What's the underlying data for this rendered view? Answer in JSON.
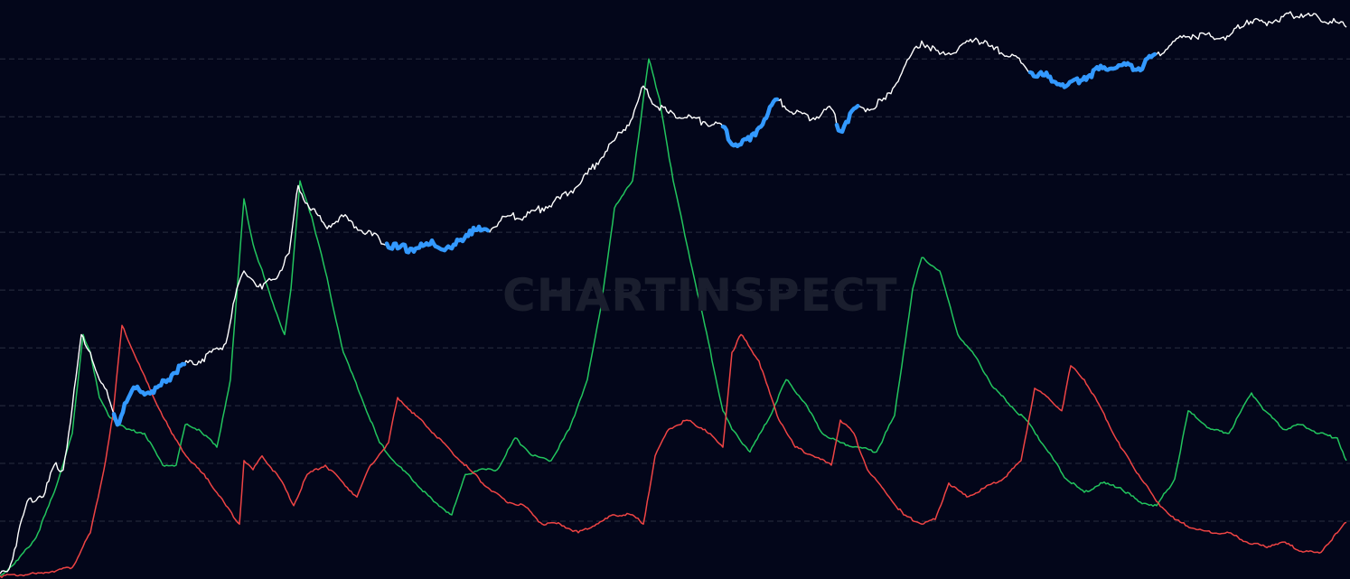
{
  "watermark": "CHARTINSPECT",
  "chart_data": {
    "type": "line",
    "title": "",
    "xlabel": "",
    "ylabel": "",
    "xlim": [
      0,
      149.4
    ],
    "ylim": [
      0,
      10.02
    ],
    "grid": true,
    "grid_levels": [
      1,
      2,
      3,
      4,
      5,
      6,
      7,
      8,
      9
    ],
    "legend": "none",
    "colors": {
      "background": "#03061a",
      "grid": "#2a2f40",
      "price": "#ffffff",
      "highlight": "#3399ff",
      "green": "#22c55e",
      "red": "#ef4444"
    },
    "series": [
      {
        "key": "price",
        "color": "#ffffff",
        "points": [
          [
            0,
            0.09
          ],
          [
            1,
            0.17
          ],
          [
            3,
            1.34
          ],
          [
            5,
            1.5
          ],
          [
            6,
            1.97
          ],
          [
            7,
            1.89
          ],
          [
            8,
            2.98
          ],
          [
            9,
            4.23
          ],
          [
            10,
            3.92
          ],
          [
            11,
            3.45
          ],
          [
            12,
            3.14
          ],
          [
            13,
            2.67
          ],
          [
            14,
            3.06
          ],
          [
            15,
            3.3
          ],
          [
            17,
            3.22
          ],
          [
            19,
            3.53
          ],
          [
            20,
            3.69
          ],
          [
            22,
            3.77
          ],
          [
            25,
            4.08
          ],
          [
            26,
            4.86
          ],
          [
            27,
            5.33
          ],
          [
            28,
            5.17
          ],
          [
            29,
            5.02
          ],
          [
            30,
            5.17
          ],
          [
            31,
            5.33
          ],
          [
            32,
            5.64
          ],
          [
            33,
            6.81
          ],
          [
            34,
            6.5
          ],
          [
            36,
            6.11
          ],
          [
            38,
            6.27
          ],
          [
            40,
            6.03
          ],
          [
            42,
            5.88
          ],
          [
            44,
            5.72
          ],
          [
            46,
            5.72
          ],
          [
            48,
            5.8
          ],
          [
            50,
            5.72
          ],
          [
            52,
            6.03
          ],
          [
            54,
            6.03
          ],
          [
            56,
            6.27
          ],
          [
            58,
            6.27
          ],
          [
            60,
            6.42
          ],
          [
            62,
            6.58
          ],
          [
            64,
            6.81
          ],
          [
            66,
            7.2
          ],
          [
            68,
            7.59
          ],
          [
            70,
            7.98
          ],
          [
            71.2,
            8.53
          ],
          [
            72,
            8.3
          ],
          [
            74,
            8.06
          ],
          [
            76,
            7.98
          ],
          [
            78,
            7.91
          ],
          [
            80,
            7.83
          ],
          [
            81,
            7.52
          ],
          [
            83,
            7.59
          ],
          [
            85,
            8.06
          ],
          [
            86,
            8.3
          ],
          [
            88,
            8.06
          ],
          [
            90,
            7.98
          ],
          [
            92,
            8.14
          ],
          [
            93,
            7.75
          ],
          [
            94.5,
            8.14
          ],
          [
            96,
            8.14
          ],
          [
            98,
            8.3
          ],
          [
            100,
            8.84
          ],
          [
            102,
            9.31
          ],
          [
            104,
            9.08
          ],
          [
            106,
            9.16
          ],
          [
            108,
            9.36
          ],
          [
            110,
            9.16
          ],
          [
            112,
            9.08
          ],
          [
            114,
            8.77
          ],
          [
            116,
            8.69
          ],
          [
            118,
            8.53
          ],
          [
            120,
            8.69
          ],
          [
            122,
            8.84
          ],
          [
            124,
            8.89
          ],
          [
            126,
            8.84
          ],
          [
            128,
            9.08
          ],
          [
            130,
            9.31
          ],
          [
            132,
            9.42
          ],
          [
            134,
            9.39
          ],
          [
            136,
            9.39
          ],
          [
            138,
            9.67
          ],
          [
            140,
            9.63
          ],
          [
            142,
            9.73
          ],
          [
            144,
            9.78
          ],
          [
            146,
            9.7
          ],
          [
            148,
            9.63
          ],
          [
            149,
            9.55
          ]
        ]
      },
      {
        "key": "green",
        "color": "#22c55e",
        "points": [
          [
            0,
            0.05
          ],
          [
            2,
            0.33
          ],
          [
            4,
            0.72
          ],
          [
            6,
            1.5
          ],
          [
            8,
            2.52
          ],
          [
            9.2,
            4.23
          ],
          [
            10,
            3.92
          ],
          [
            11,
            3.14
          ],
          [
            12,
            2.83
          ],
          [
            14,
            2.59
          ],
          [
            16,
            2.52
          ],
          [
            18,
            1.97
          ],
          [
            19.5,
            1.97
          ],
          [
            20.5,
            2.67
          ],
          [
            22,
            2.59
          ],
          [
            24,
            2.28
          ],
          [
            25.5,
            3.45
          ],
          [
            27,
            6.58
          ],
          [
            28,
            5.8
          ],
          [
            30,
            4.86
          ],
          [
            31.5,
            4.23
          ],
          [
            32.2,
            5.02
          ],
          [
            33.2,
            6.89
          ],
          [
            34.5,
            6.27
          ],
          [
            36,
            5.33
          ],
          [
            38,
            3.92
          ],
          [
            40,
            3.14
          ],
          [
            42,
            2.36
          ],
          [
            44,
            1.97
          ],
          [
            46,
            1.66
          ],
          [
            48,
            1.34
          ],
          [
            50,
            1.11
          ],
          [
            51.5,
            1.81
          ],
          [
            53,
            1.89
          ],
          [
            55,
            1.89
          ],
          [
            57,
            2.44
          ],
          [
            59,
            2.13
          ],
          [
            61,
            2.05
          ],
          [
            63,
            2.59
          ],
          [
            65,
            3.45
          ],
          [
            66.5,
            4.7
          ],
          [
            68,
            6.42
          ],
          [
            70,
            6.89
          ],
          [
            71.8,
            9.0
          ],
          [
            73,
            8.3
          ],
          [
            74.5,
            6.89
          ],
          [
            76,
            5.8
          ],
          [
            78,
            4.39
          ],
          [
            80,
            2.91
          ],
          [
            81,
            2.59
          ],
          [
            83,
            2.2
          ],
          [
            85,
            2.75
          ],
          [
            87,
            3.45
          ],
          [
            89,
            3.06
          ],
          [
            91,
            2.52
          ],
          [
            93,
            2.36
          ],
          [
            95,
            2.28
          ],
          [
            97,
            2.2
          ],
          [
            99,
            2.83
          ],
          [
            101,
            5.02
          ],
          [
            102,
            5.56
          ],
          [
            104,
            5.33
          ],
          [
            106,
            4.23
          ],
          [
            108,
            3.84
          ],
          [
            110,
            3.3
          ],
          [
            112,
            2.98
          ],
          [
            114,
            2.67
          ],
          [
            116,
            2.2
          ],
          [
            118,
            1.73
          ],
          [
            120,
            1.5
          ],
          [
            122,
            1.66
          ],
          [
            124,
            1.58
          ],
          [
            126,
            1.34
          ],
          [
            128,
            1.27
          ],
          [
            130,
            1.73
          ],
          [
            131.5,
            2.91
          ],
          [
            134,
            2.59
          ],
          [
            136,
            2.52
          ],
          [
            138.5,
            3.22
          ],
          [
            140,
            2.91
          ],
          [
            142,
            2.59
          ],
          [
            144,
            2.67
          ],
          [
            146,
            2.52
          ],
          [
            148,
            2.44
          ],
          [
            149,
            2.05
          ]
        ]
      },
      {
        "key": "red",
        "color": "#ef4444",
        "points": [
          [
            0,
            0.05
          ],
          [
            4,
            0.09
          ],
          [
            8,
            0.2
          ],
          [
            10,
            0.8
          ],
          [
            11.5,
            1.89
          ],
          [
            12.5,
            2.83
          ],
          [
            13.5,
            4.39
          ],
          [
            15,
            3.84
          ],
          [
            17,
            3.14
          ],
          [
            19,
            2.52
          ],
          [
            21,
            2.05
          ],
          [
            23,
            1.73
          ],
          [
            25,
            1.27
          ],
          [
            26.5,
            0.95
          ],
          [
            27,
            2.05
          ],
          [
            28,
            1.89
          ],
          [
            29,
            2.13
          ],
          [
            31,
            1.73
          ],
          [
            32.5,
            1.27
          ],
          [
            34,
            1.81
          ],
          [
            36,
            1.97
          ],
          [
            38,
            1.66
          ],
          [
            39.5,
            1.42
          ],
          [
            41,
            1.97
          ],
          [
            43,
            2.36
          ],
          [
            44,
            3.14
          ],
          [
            46,
            2.83
          ],
          [
            48,
            2.52
          ],
          [
            50,
            2.2
          ],
          [
            52,
            1.89
          ],
          [
            54,
            1.58
          ],
          [
            56,
            1.34
          ],
          [
            58,
            1.27
          ],
          [
            60,
            0.95
          ],
          [
            62,
            0.95
          ],
          [
            64,
            0.8
          ],
          [
            66,
            0.95
          ],
          [
            68,
            1.11
          ],
          [
            70,
            1.11
          ],
          [
            71.2,
            0.95
          ],
          [
            72.5,
            2.13
          ],
          [
            74,
            2.59
          ],
          [
            76,
            2.75
          ],
          [
            78,
            2.59
          ],
          [
            80,
            2.28
          ],
          [
            81,
            3.92
          ],
          [
            82,
            4.23
          ],
          [
            84,
            3.77
          ],
          [
            86,
            2.83
          ],
          [
            88,
            2.28
          ],
          [
            90,
            2.13
          ],
          [
            92,
            1.97
          ],
          [
            93,
            2.75
          ],
          [
            94.5,
            2.52
          ],
          [
            96,
            1.89
          ],
          [
            98,
            1.5
          ],
          [
            100,
            1.11
          ],
          [
            102,
            0.95
          ],
          [
            103.5,
            1.03
          ],
          [
            105,
            1.66
          ],
          [
            107,
            1.42
          ],
          [
            109,
            1.58
          ],
          [
            111,
            1.73
          ],
          [
            113,
            2.05
          ],
          [
            114.5,
            3.3
          ],
          [
            116,
            3.14
          ],
          [
            117.5,
            2.91
          ],
          [
            118.5,
            3.69
          ],
          [
            120,
            3.45
          ],
          [
            122,
            2.91
          ],
          [
            124,
            2.28
          ],
          [
            126,
            1.81
          ],
          [
            128,
            1.34
          ],
          [
            130,
            1.03
          ],
          [
            132,
            0.88
          ],
          [
            134,
            0.8
          ],
          [
            136,
            0.8
          ],
          [
            138,
            0.64
          ],
          [
            140,
            0.56
          ],
          [
            142,
            0.64
          ],
          [
            144,
            0.48
          ],
          [
            146,
            0.45
          ],
          [
            148,
            0.8
          ],
          [
            149,
            0.98
          ]
        ]
      }
    ],
    "highlight_ranges": [
      [
        12.5,
        20.5
      ],
      [
        42.8,
        54
      ],
      [
        80,
        86
      ],
      [
        92.5,
        95
      ],
      [
        114,
        127.8
      ]
    ]
  }
}
